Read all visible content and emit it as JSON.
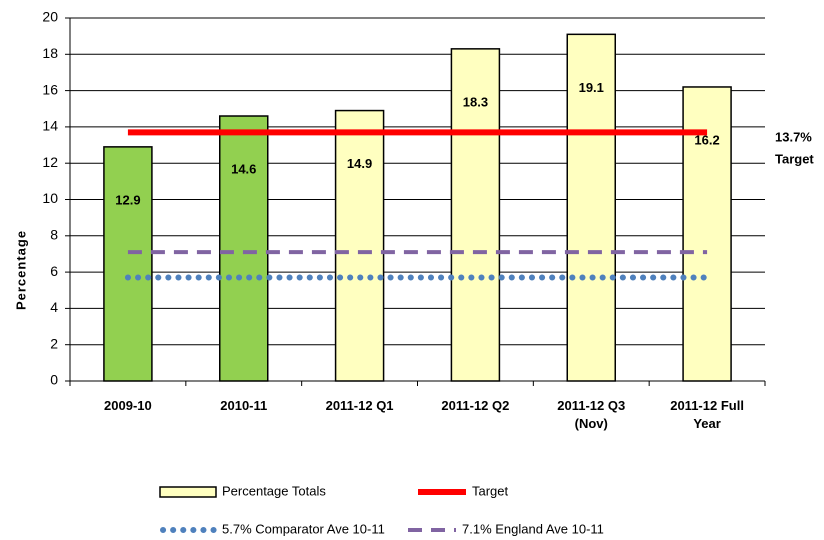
{
  "chart_data": {
    "type": "bar",
    "y_label": "Percentage",
    "categories": [
      "2009-10",
      "2010-11",
      "2011-12 Q1",
      "2011-12 Q2",
      "2011-12 Q3 (Nov)",
      "2011-12 Full Year"
    ],
    "series": [
      {
        "name": "Percentage Totals",
        "type": "bar",
        "color": "#ffffc0",
        "colors": [
          "#92d050",
          "#92d050",
          "#ffffc0",
          "#ffffc0",
          "#ffffc0",
          "#ffffc0"
        ],
        "values": [
          12.9,
          14.6,
          14.9,
          18.3,
          19.1,
          16.2
        ]
      },
      {
        "name": "Target",
        "type": "line",
        "style": "solid",
        "color": "#ff0000",
        "values": [
          13.7,
          13.7,
          13.7,
          13.7,
          13.7,
          13.7
        ]
      },
      {
        "name": "5.7% Comparator Ave 10-11",
        "type": "line",
        "style": "dotted",
        "color": "#4f81bd",
        "values": [
          5.7,
          5.7,
          5.7,
          5.7,
          5.7,
          5.7
        ]
      },
      {
        "name": "7.1% England Ave 10-11",
        "type": "line",
        "style": "dashed",
        "color": "#8064a2",
        "values": [
          7.1,
          7.1,
          7.1,
          7.1,
          7.1,
          7.1
        ]
      }
    ],
    "annotations": [
      "13.7%",
      "Target"
    ],
    "ylim": [
      0,
      20
    ],
    "yticks": [
      0,
      2,
      4,
      6,
      8,
      10,
      12,
      14,
      16,
      18,
      20
    ],
    "grid": true,
    "legend": "bottom"
  }
}
